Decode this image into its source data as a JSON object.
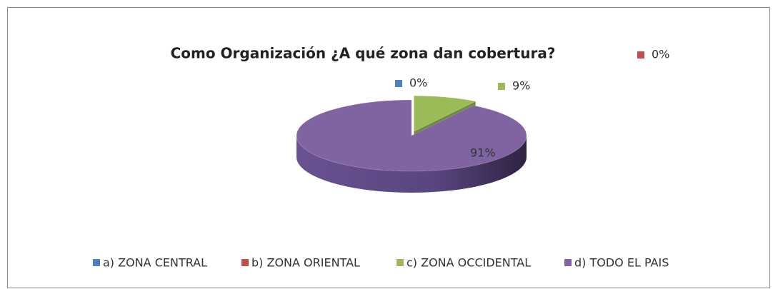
{
  "chart_data": {
    "type": "pie",
    "title": "Como Organización ¿A qué zona dan cobertura?",
    "categories": [
      "a) ZONA CENTRAL",
      "b) ZONA ORIENTAL",
      "c) ZONA OCCIDENTAL",
      "d) TODO EL PAIS"
    ],
    "values": [
      0,
      0,
      9,
      91
    ],
    "value_labels": [
      "0%",
      "0%",
      "9%",
      "91%"
    ],
    "colors": [
      "#4f81bd",
      "#c0504d",
      "#9bbb59",
      "#8064a2"
    ],
    "legend": "bottom"
  }
}
